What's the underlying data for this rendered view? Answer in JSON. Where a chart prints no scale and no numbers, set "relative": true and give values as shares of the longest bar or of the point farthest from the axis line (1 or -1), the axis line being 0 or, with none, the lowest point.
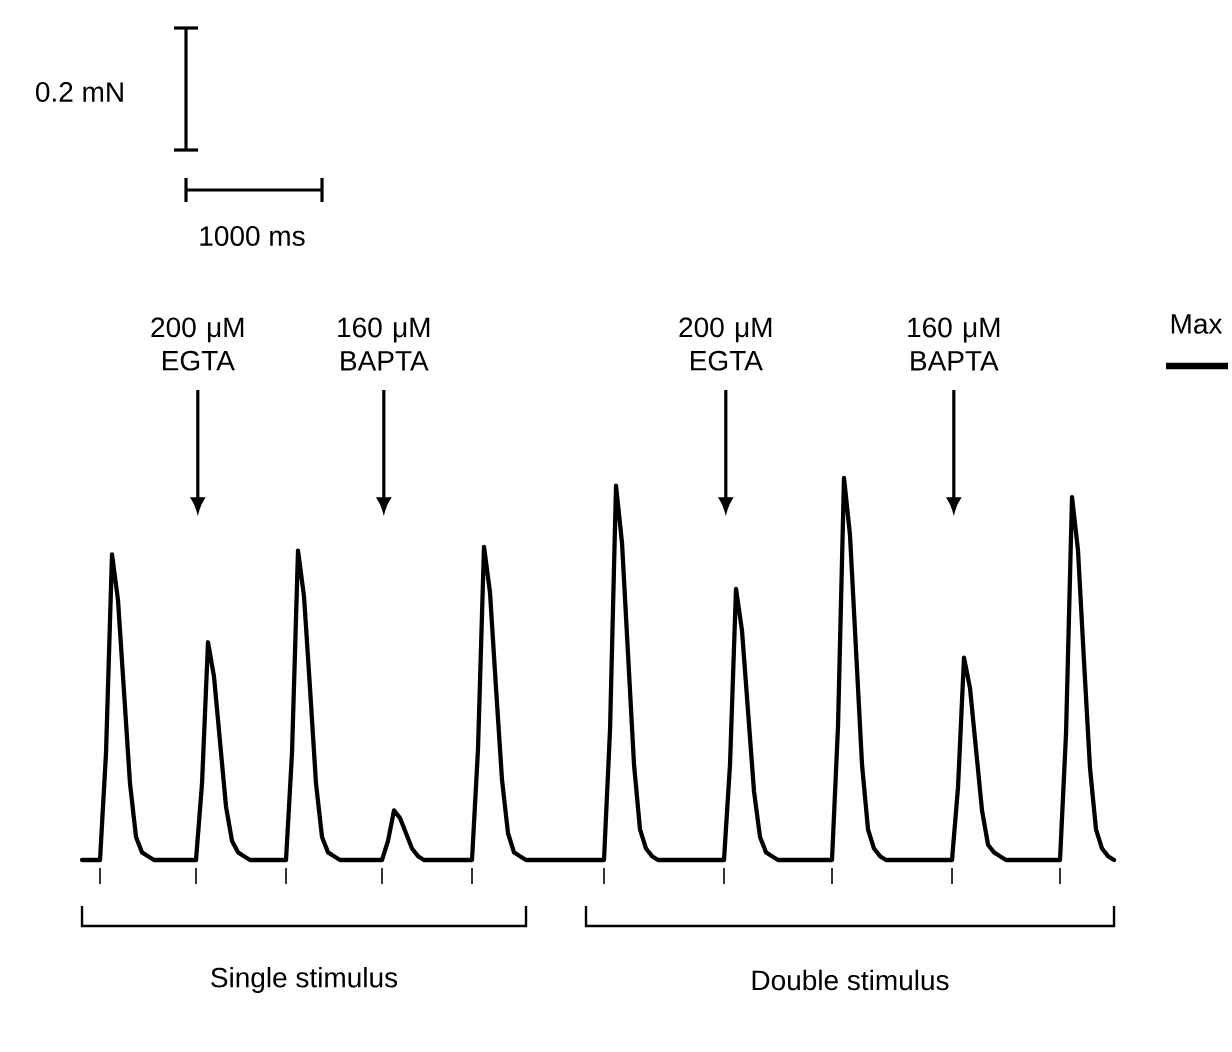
{
  "chart_data": {
    "type": "line",
    "relative": true,
    "color": "#000000",
    "categories": [
      null,
      null,
      null,
      null,
      null,
      null,
      null,
      null,
      null,
      null,
      null,
      null,
      null,
      null,
      null,
      null,
      null,
      null,
      null,
      null,
      null,
      null,
      null,
      null,
      null,
      null,
      null,
      null,
      null,
      null,
      null,
      null,
      null,
      null,
      null,
      null,
      null,
      null,
      null,
      null,
      null,
      null,
      null,
      null,
      null,
      null,
      null,
      null,
      null,
      null,
      null,
      null,
      null,
      null,
      null,
      null,
      null,
      null,
      null,
      null,
      null,
      null,
      null,
      null,
      null,
      null,
      null,
      null,
      null,
      null,
      null,
      null,
      null,
      null,
      null,
      null,
      null,
      null,
      null,
      null,
      null,
      null,
      null,
      null,
      null,
      null,
      null,
      null,
      null,
      null,
      null,
      null,
      null,
      null,
      null,
      null,
      null,
      null,
      null,
      null,
      null,
      null,
      null,
      null,
      null,
      null,
      null,
      null,
      null,
      null,
      null,
      null,
      null,
      null,
      null,
      null,
      null,
      null,
      null,
      null,
      null,
      null,
      null,
      null,
      null,
      null,
      null,
      null,
      null,
      null,
      null,
      null,
      null,
      null,
      null,
      null,
      null,
      null,
      null,
      null,
      null,
      null,
      null,
      null,
      null,
      null,
      null,
      null,
      null,
      null,
      null,
      null,
      null,
      null,
      null,
      null,
      null,
      null,
      null,
      null,
      null,
      null,
      null,
      null,
      null,
      null,
      null,
      null,
      null,
      null,
      null,
      null,
      null
    ],
    "values": [
      0,
      0,
      0,
      0,
      0.28,
      0.8,
      0.68,
      0.44,
      0.2,
      0.06,
      0.02,
      0.01,
      0,
      0,
      0,
      0,
      0,
      0,
      0,
      0,
      0.2,
      0.57,
      0.48,
      0.31,
      0.14,
      0.05,
      0.02,
      0.01,
      0,
      0,
      0,
      0,
      0,
      0,
      0,
      0.28,
      0.81,
      0.69,
      0.45,
      0.2,
      0.06,
      0.02,
      0.01,
      0,
      0,
      0,
      0,
      0,
      0,
      0,
      0,
      0.05,
      0.13,
      0.11,
      0.07,
      0.03,
      0.01,
      0,
      0,
      0,
      0,
      0,
      0,
      0,
      0,
      0,
      0.29,
      0.82,
      0.7,
      0.45,
      0.21,
      0.07,
      0.02,
      0.01,
      0,
      0,
      0,
      0,
      0,
      0,
      0,
      0,
      0,
      0,
      0,
      0,
      0,
      0,
      0.34,
      0.98,
      0.83,
      0.54,
      0.25,
      0.08,
      0.03,
      0.01,
      0,
      0,
      0,
      0,
      0,
      0,
      0,
      0,
      0,
      0,
      0,
      0,
      0.25,
      0.71,
      0.6,
      0.39,
      0.18,
      0.06,
      0.02,
      0.01,
      0,
      0,
      0,
      0,
      0,
      0,
      0,
      0,
      0,
      0,
      0.35,
      1,
      0.85,
      0.55,
      0.25,
      0.08,
      0.03,
      0.01,
      0,
      0,
      0,
      0,
      0,
      0,
      0,
      0,
      0,
      0,
      0,
      0,
      0.19,
      0.53,
      0.45,
      0.29,
      0.13,
      0.04,
      0.02,
      0.01,
      0,
      0,
      0,
      0,
      0,
      0,
      0,
      0,
      0,
      0,
      0.33,
      0.95,
      0.81,
      0.52,
      0.24,
      0.08,
      0.03,
      0.01,
      0
    ],
    "annotations": [
      "0.2 mN",
      "1000 ms",
      "200 μM EGTA",
      "160 μM BAPTA",
      "200 μM EGTA",
      "160 μM BAPTA",
      "Single stimulus",
      "Double stimulus",
      "Max"
    ]
  }
}
